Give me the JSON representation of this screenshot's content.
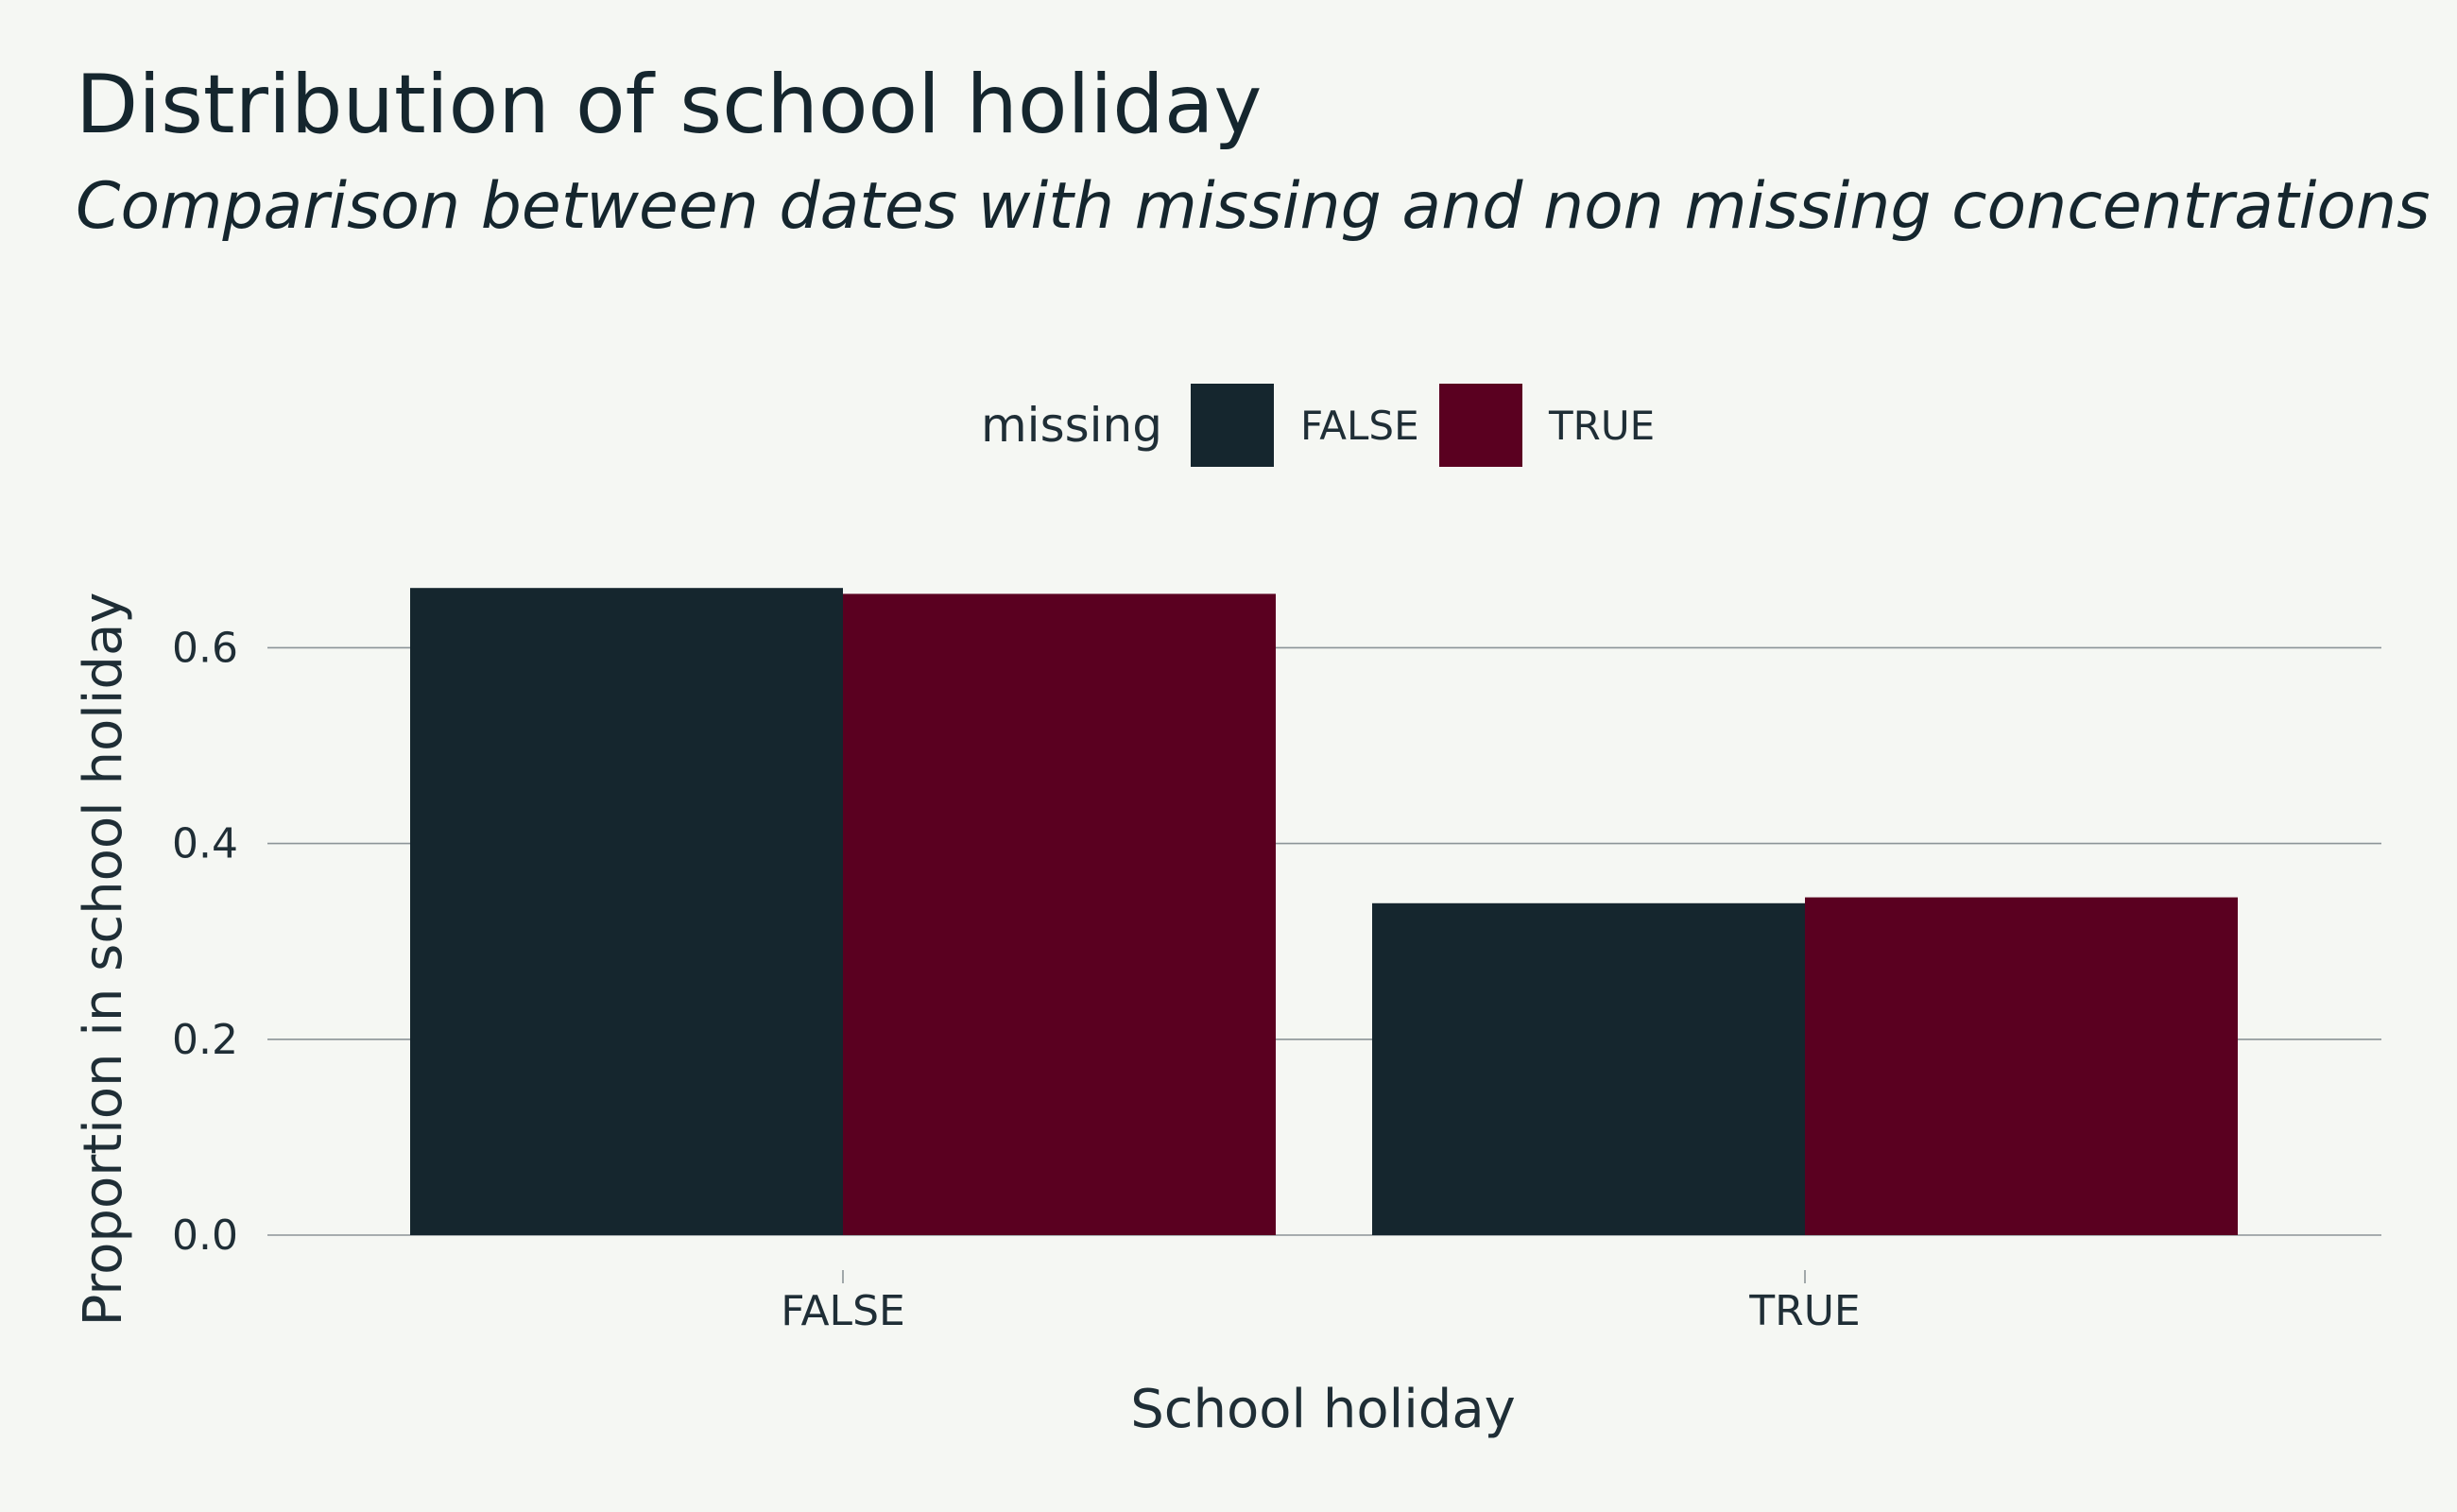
{
  "chart_data": {
    "type": "bar",
    "title": "Distribution of school holiday",
    "subtitle": "Comparison between dates with missing and non missing concentrations",
    "xlabel": "School holiday",
    "ylabel": "Proportion in school holiday",
    "categories": [
      "FALSE",
      "TRUE"
    ],
    "ylim": [
      0,
      0.7
    ],
    "yticks": [
      0.0,
      0.2,
      0.4,
      0.6
    ],
    "ytick_labels": [
      "0.0",
      "0.2",
      "0.4",
      "0.6"
    ],
    "legend": {
      "title": "missing",
      "position": "top",
      "entries": [
        "FALSE",
        "TRUE"
      ]
    },
    "series": [
      {
        "name": "FALSE",
        "color": "#15262e",
        "values": [
          0.661,
          0.339
        ]
      },
      {
        "name": "TRUE",
        "color": "#5a0020",
        "values": [
          0.655,
          0.345
        ]
      }
    ],
    "grid": "horizontal-major"
  }
}
